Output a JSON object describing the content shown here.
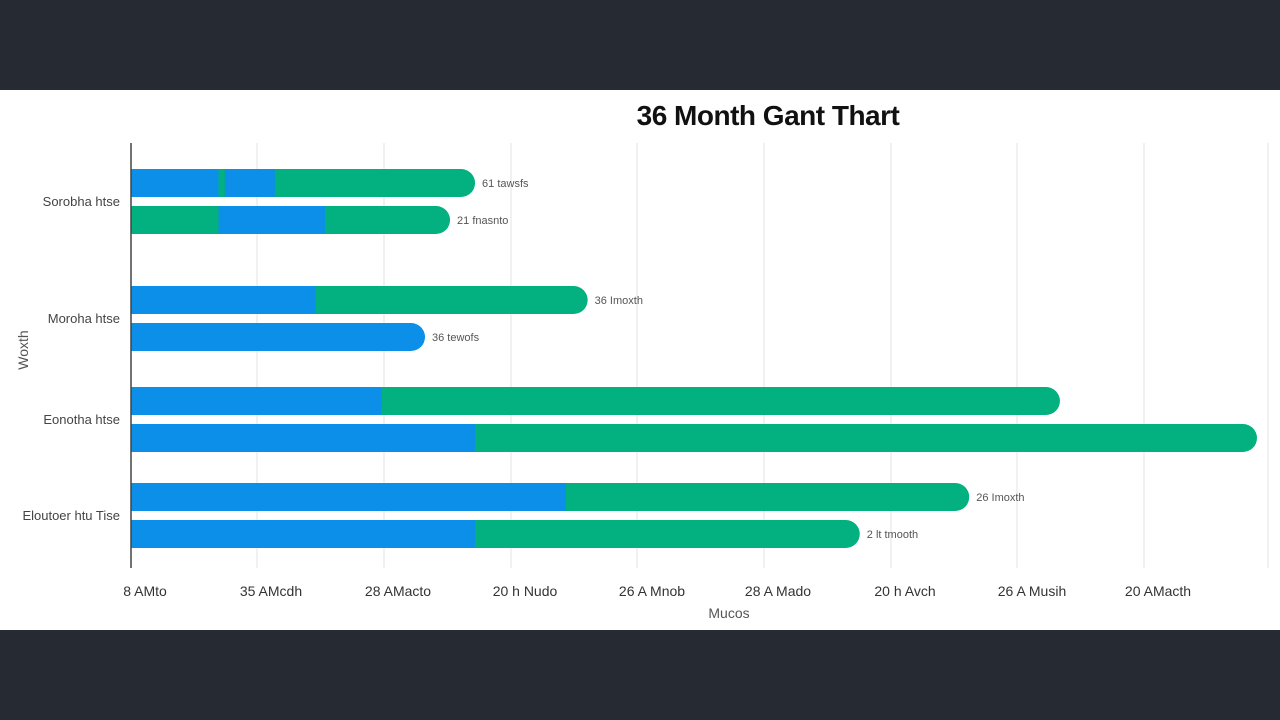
{
  "colors": {
    "background": "#252a33",
    "panel": "#ffffff",
    "blue": "#0b8fe8",
    "green": "#03b07f",
    "grid": "#e6e8ea",
    "axis": "#444444"
  },
  "chart_data": {
    "type": "bar",
    "orientation": "horizontal",
    "stacked": true,
    "title": "36 Month Gant Thart",
    "xlabel": "Mucos",
    "ylabel": "Woxth",
    "xlim": [
      0,
      36
    ],
    "grid": true,
    "x_tick_labels": [
      "8 AMto",
      "35 AMcdh",
      "28 AMacto",
      "20 h Nudo",
      "26 A Mnob",
      "28 A Mado",
      "20 h Avch",
      "26 A Musih",
      "20 AMacth"
    ],
    "groups": [
      {
        "label": "Sorobha htse",
        "bars": [
          {
            "label": "61 tawsfs",
            "segments": [
              {
                "color": "blue",
                "start": 0,
                "end": 2.8
              },
              {
                "color": "green",
                "start": 2.8,
                "end": 3.0
              },
              {
                "color": "blue",
                "start": 3.0,
                "end": 4.6
              },
              {
                "color": "green",
                "start": 4.6,
                "end": 11.0
              }
            ]
          },
          {
            "label": "21 fnasnto",
            "segments": [
              {
                "color": "green",
                "start": 0,
                "end": 2.8
              },
              {
                "color": "blue",
                "start": 2.8,
                "end": 6.2
              },
              {
                "color": "green",
                "start": 6.2,
                "end": 10.2
              }
            ]
          }
        ]
      },
      {
        "label": "Moroha htse",
        "bars": [
          {
            "label": "36 Imoxth",
            "segments": [
              {
                "color": "blue",
                "start": 0,
                "end": 5.9
              },
              {
                "color": "green",
                "start": 5.9,
                "end": 14.6
              }
            ]
          },
          {
            "label": "36 tewofs",
            "segments": [
              {
                "color": "blue",
                "start": 0,
                "end": 9.4
              }
            ]
          }
        ]
      },
      {
        "label": "Eonotha htse",
        "bars": [
          {
            "label": "",
            "segments": [
              {
                "color": "blue",
                "start": 0,
                "end": 8.0
              },
              {
                "color": "green",
                "start": 8.0,
                "end": 29.7
              }
            ]
          },
          {
            "label": "",
            "segments": [
              {
                "color": "blue",
                "start": 0,
                "end": 11.0
              },
              {
                "color": "green",
                "start": 11.0,
                "end": 36.0
              }
            ]
          }
        ]
      },
      {
        "label": "Eloutoer htu Tise",
        "bars": [
          {
            "label": "26 Imoxth",
            "segments": [
              {
                "color": "blue",
                "start": 0,
                "end": 13.9
              },
              {
                "color": "green",
                "start": 13.9,
                "end": 26.8
              }
            ]
          },
          {
            "label": "2 lt tmooth",
            "segments": [
              {
                "color": "blue",
                "start": 0,
                "end": 11.0
              },
              {
                "color": "green",
                "start": 11.0,
                "end": 23.3
              }
            ]
          }
        ]
      }
    ]
  }
}
